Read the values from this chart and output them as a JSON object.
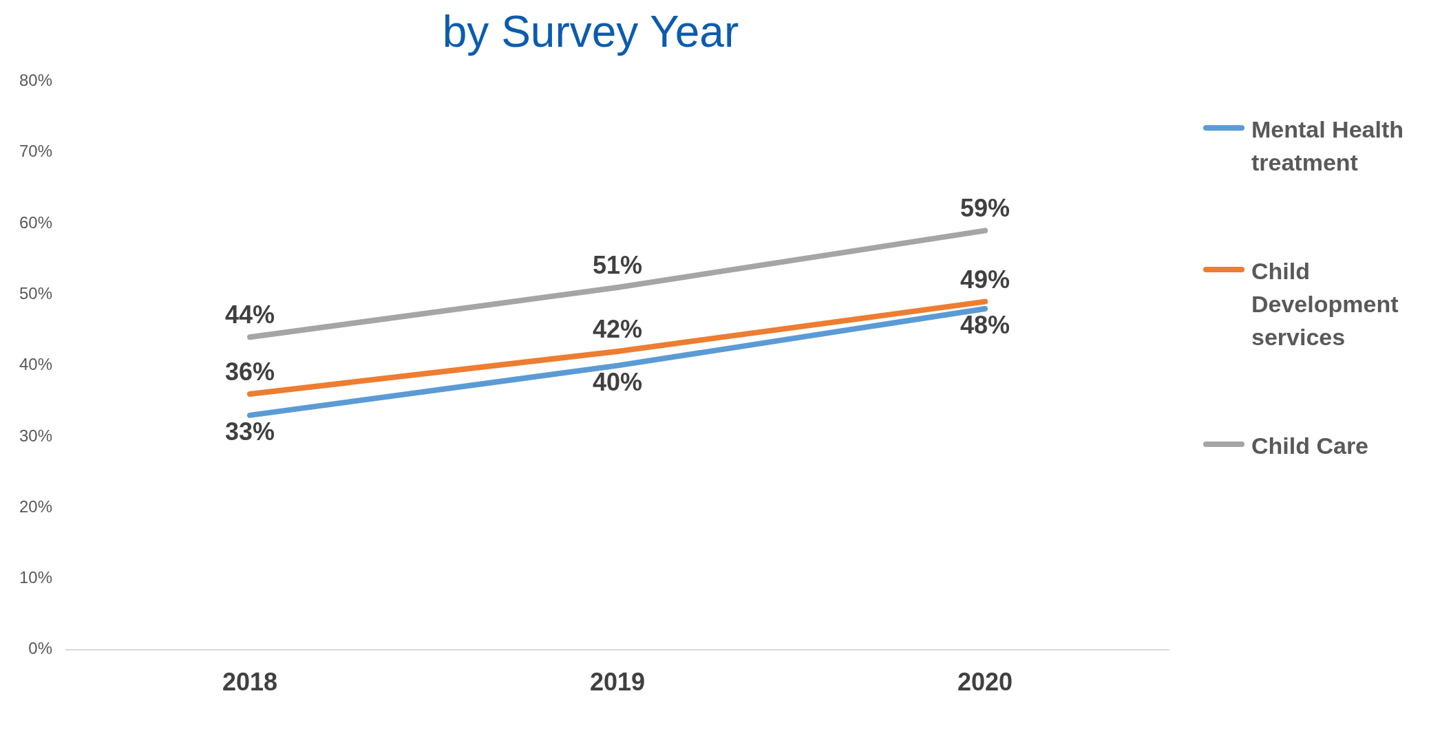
{
  "chart_data": {
    "type": "line",
    "title": "by Survey Year",
    "categories": [
      "2018",
      "2019",
      "2020"
    ],
    "series": [
      {
        "name": "Mental Health treatment",
        "color": "#5b9bd5",
        "values": [
          33,
          40,
          48
        ],
        "value_labels": [
          "33%",
          "40%",
          "48%"
        ]
      },
      {
        "name": "Child Development services",
        "color": "#ed7d31",
        "values": [
          36,
          42,
          49
        ],
        "value_labels": [
          "36%",
          "42%",
          "49%"
        ]
      },
      {
        "name": "Child Care",
        "color": "#a5a5a5",
        "values": [
          44,
          51,
          59
        ],
        "value_labels": [
          "44%",
          "51%",
          "59%"
        ]
      }
    ],
    "ylim": [
      0,
      80
    ],
    "yticks": [
      {
        "value": 0,
        "label": "0%"
      },
      {
        "value": 10,
        "label": "10%"
      },
      {
        "value": 20,
        "label": "20%"
      },
      {
        "value": 30,
        "label": "30%"
      },
      {
        "value": 40,
        "label": "40%"
      },
      {
        "value": 50,
        "label": "50%"
      },
      {
        "value": 60,
        "label": "60%"
      },
      {
        "value": 70,
        "label": "70%"
      },
      {
        "value": 80,
        "label": "80%"
      }
    ],
    "grid": false,
    "legend": "right",
    "marker": "none",
    "line_style": "solid"
  }
}
